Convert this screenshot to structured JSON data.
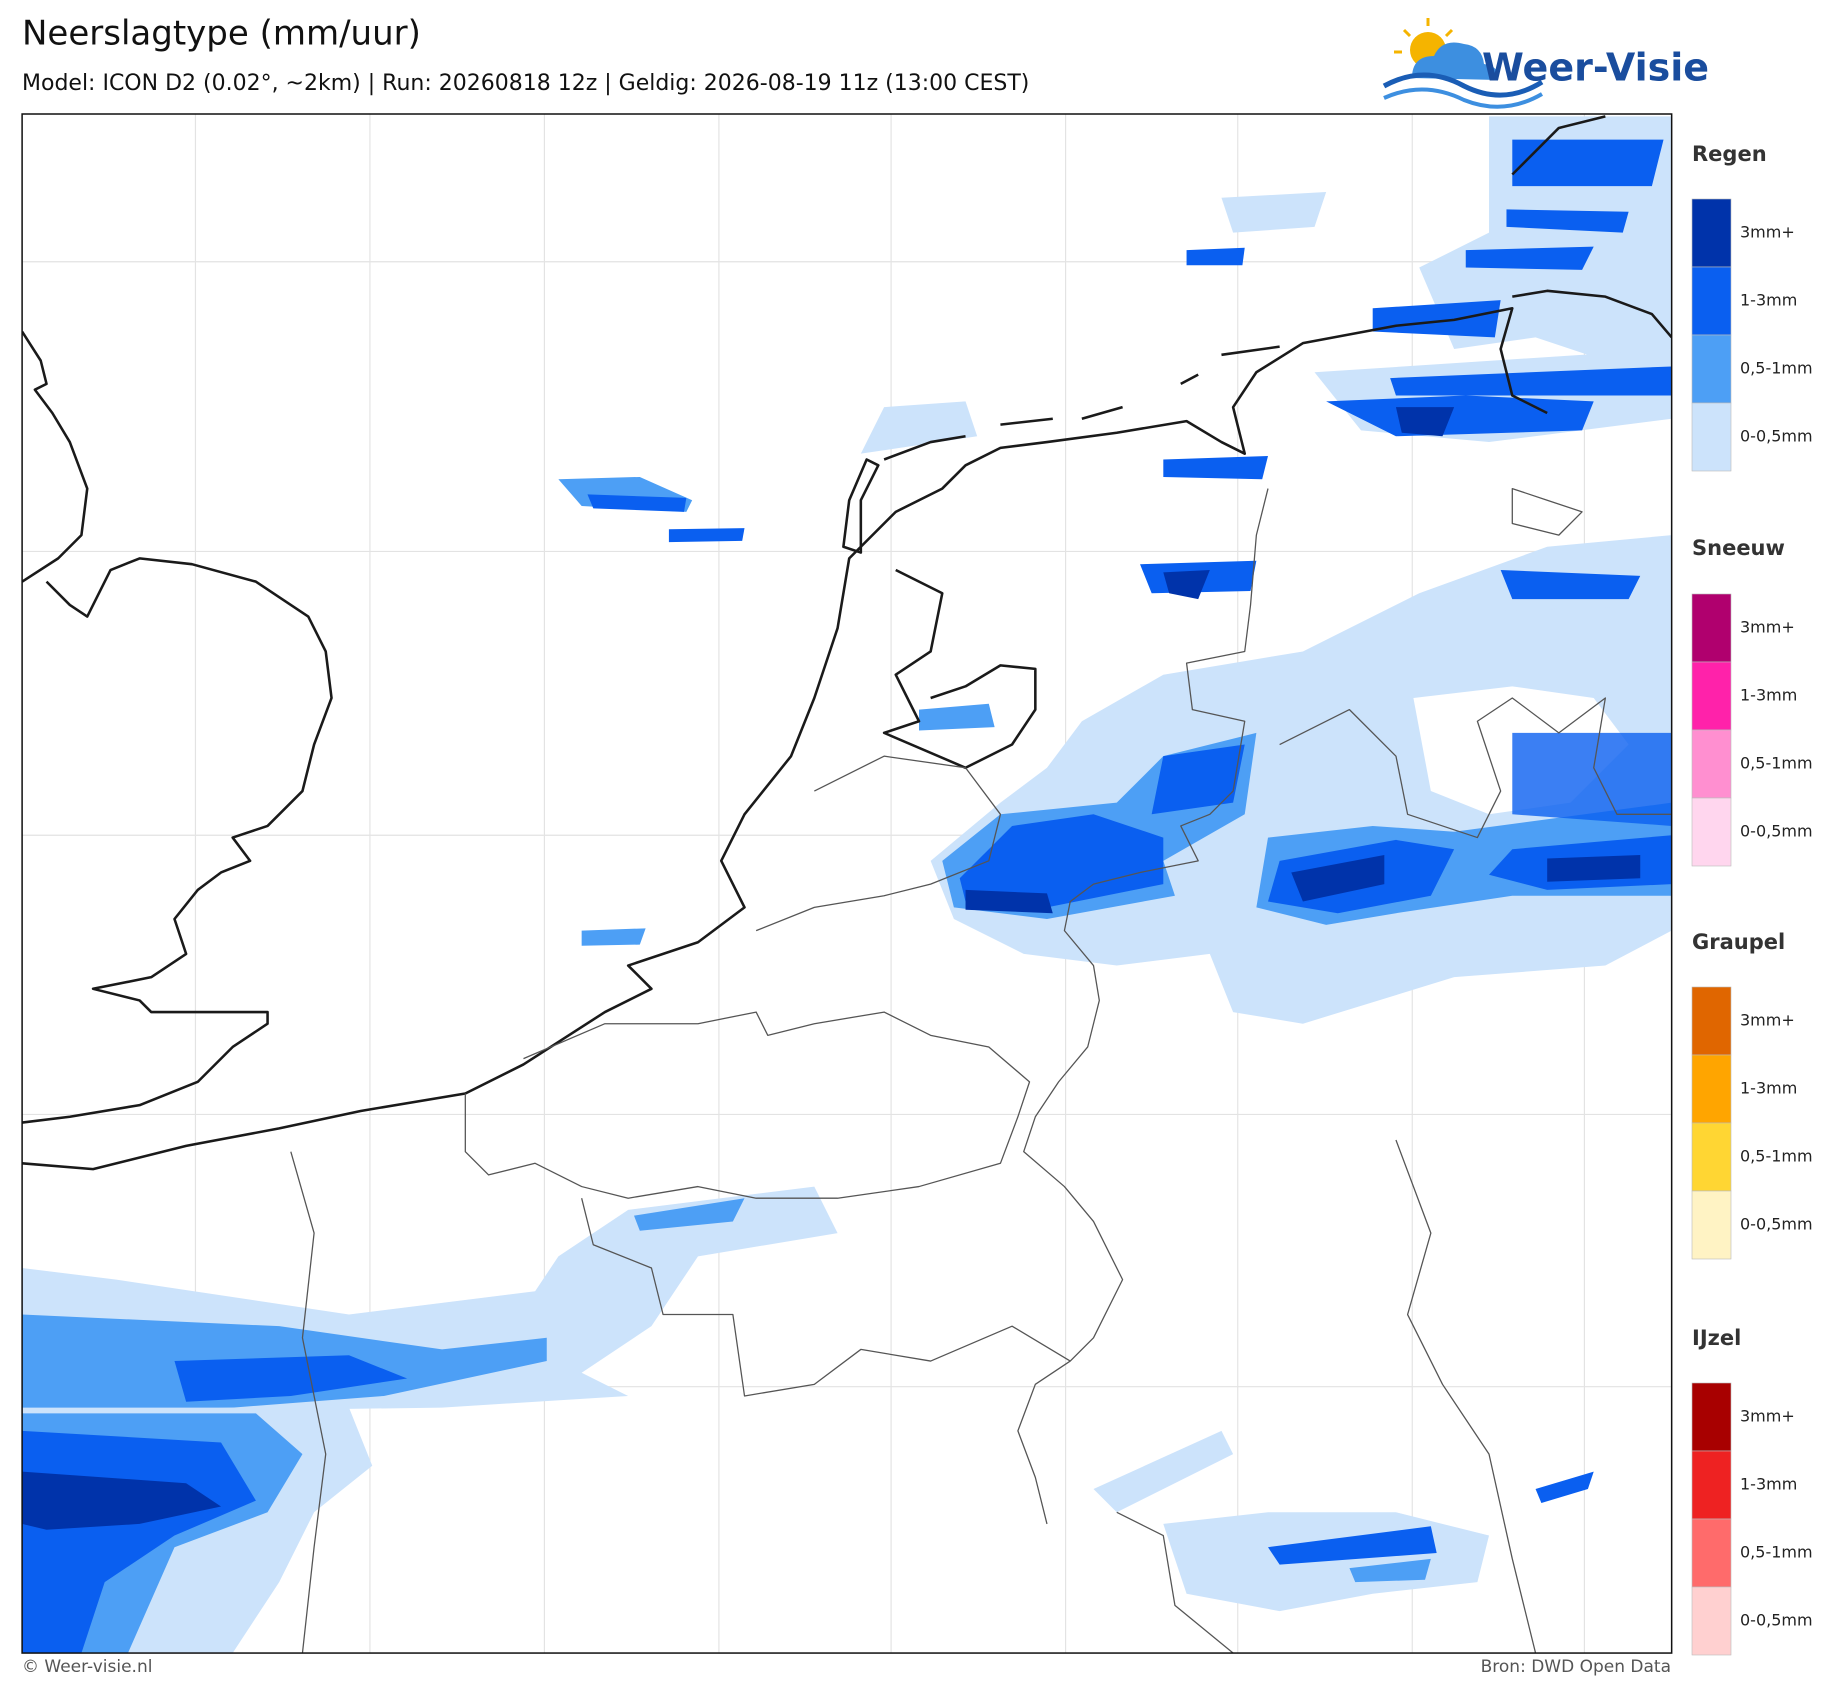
{
  "header": {
    "title": "Neerslagtype (mm/uur)",
    "subtitle": "Model: ICON D2 (0.02°, ~2km)  |  Run: 20260818 12z  |  Geldig: 2026-08-19 11z (13:00 CEST)"
  },
  "logo": {
    "text": "Weer-Visie"
  },
  "legend": {
    "groups": [
      {
        "title": "Regen",
        "items": [
          {
            "label": "3mm+",
            "color": "#0033aa"
          },
          {
            "label": "1-3mm",
            "color": "#0a5ff0"
          },
          {
            "label": "0,5-1mm",
            "color": "#4d9ff5"
          },
          {
            "label": "0-0,5mm",
            "color": "#cce3fb"
          }
        ]
      },
      {
        "title": "Sneeuw",
        "items": [
          {
            "label": "3mm+",
            "color": "#b0006e"
          },
          {
            "label": "1-3mm",
            "color": "#ff22aa"
          },
          {
            "label": "0,5-1mm",
            "color": "#ff8fd0"
          },
          {
            "label": "0-0,5mm",
            "color": "#ffd6ee"
          }
        ]
      },
      {
        "title": "Graupel",
        "items": [
          {
            "label": "3mm+",
            "color": "#e06600"
          },
          {
            "label": "1-3mm",
            "color": "#ffa500"
          },
          {
            "label": "0,5-1mm",
            "color": "#ffd633"
          },
          {
            "label": "0-0,5mm",
            "color": "#fff3c4"
          }
        ]
      },
      {
        "title": "IJzel",
        "items": [
          {
            "label": "3mm+",
            "color": "#a80000"
          },
          {
            "label": "1-3mm",
            "color": "#ee2222"
          },
          {
            "label": "0,5-1mm",
            "color": "#ff6b6b"
          },
          {
            "label": "0-0,5mm",
            "color": "#ffd0d0"
          }
        ]
      }
    ]
  },
  "footer": {
    "left": "© Weer-visie.nl",
    "right": "Bron: DWD Open Data"
  }
}
